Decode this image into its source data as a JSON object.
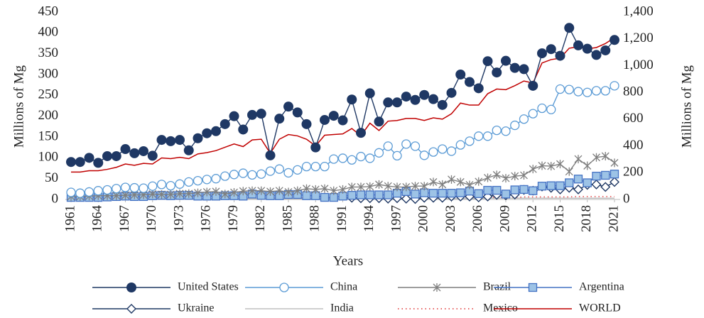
{
  "chart_data": {
    "type": "line",
    "x_label": "Years",
    "y_label": "Millions of Mg",
    "y2_label": "Millions of Mg",
    "x": [
      1961,
      1962,
      1963,
      1964,
      1965,
      1966,
      1967,
      1968,
      1969,
      1970,
      1971,
      1972,
      1973,
      1974,
      1975,
      1976,
      1977,
      1978,
      1979,
      1980,
      1981,
      1982,
      1983,
      1984,
      1985,
      1986,
      1987,
      1988,
      1989,
      1990,
      1991,
      1992,
      1993,
      1994,
      1995,
      1996,
      1997,
      1998,
      1999,
      2000,
      2001,
      2002,
      2003,
      2004,
      2005,
      2006,
      2007,
      2008,
      2009,
      2010,
      2011,
      2012,
      2013,
      2014,
      2015,
      2016,
      2017,
      2018,
      2019,
      2020,
      2021
    ],
    "xlim": [
      1961,
      2021
    ],
    "xticks": [
      1961,
      1964,
      1967,
      1970,
      1973,
      1976,
      1979,
      1982,
      1985,
      1988,
      1991,
      1994,
      1997,
      2000,
      2003,
      2006,
      2009,
      2012,
      2015,
      2018,
      2021
    ],
    "ylim": [
      0,
      450
    ],
    "yticks": [
      0,
      50,
      100,
      150,
      200,
      250,
      300,
      350,
      400,
      450
    ],
    "y2lim": [
      0,
      1400
    ],
    "y2ticks": [
      0,
      200,
      400,
      600,
      800,
      {
        "value": 1000,
        "label": "1,000"
      },
      {
        "value": 1200,
        "label": "1,200"
      },
      {
        "value": 1400,
        "label": "1,400"
      }
    ],
    "grid": false,
    "legend": "bottom",
    "series": [
      {
        "name": "United States",
        "color": "#1f3864",
        "marker": "circle-filled",
        "values": [
          90,
          90,
          100,
          88,
          104,
          104,
          121,
          111,
          116,
          105,
          143,
          140,
          143,
          118,
          147,
          159,
          164,
          181,
          200,
          168,
          203,
          206,
          106,
          194,
          223,
          209,
          181,
          125,
          191,
          201,
          190,
          240,
          160,
          255,
          187,
          233,
          233,
          247,
          239,
          251,
          241,
          227,
          256,
          300,
          282,
          267,
          332,
          305,
          333,
          316,
          313,
          273,
          351,
          361,
          345,
          412,
          370,
          362,
          347,
          358,
          383
        ]
      },
      {
        "name": "China",
        "color": "#5b9bd5",
        "marker": "circle-open",
        "values": [
          17,
          15,
          18,
          21,
          23,
          26,
          29,
          28,
          27,
          32,
          36,
          33,
          37,
          42,
          45,
          48,
          50,
          56,
          60,
          63,
          59,
          61,
          68,
          73,
          64,
          71,
          79,
          79,
          79,
          97,
          99,
          95,
          103,
          99,
          112,
          128,
          105,
          133,
          128,
          106,
          114,
          121,
          116,
          131,
          140,
          152,
          152,
          166,
          164,
          178,
          193,
          206,
          219,
          216,
          265,
          264,
          259,
          257,
          261,
          261,
          273
        ]
      },
      {
        "name": "Brazil",
        "color": "#7f7f7f",
        "marker": "asterisk",
        "values": [
          7,
          7,
          8,
          9,
          9,
          9,
          10,
          11,
          11,
          13,
          12,
          12,
          14,
          14,
          16,
          18,
          19,
          13,
          17,
          20,
          21,
          21,
          19,
          21,
          18,
          21,
          26,
          24,
          26,
          21,
          24,
          30,
          30,
          31,
          36,
          32,
          30,
          30,
          32,
          32,
          42,
          36,
          48,
          42,
          35,
          43,
          52,
          59,
          51,
          56,
          58,
          73,
          81,
          80,
          85,
          67,
          97,
          81,
          101,
          104,
          88
        ]
      },
      {
        "name": "Argentina",
        "color": "#4472c4",
        "fill": "#9dc3e6",
        "marker": "square",
        "values": [
          5,
          5,
          5,
          5,
          6,
          7,
          8,
          7,
          7,
          9,
          10,
          9,
          10,
          10,
          8,
          8,
          8,
          9,
          9,
          8,
          13,
          10,
          9,
          9,
          12,
          12,
          9,
          9,
          5,
          5,
          8,
          10,
          11,
          11,
          11,
          11,
          15,
          19,
          13,
          16,
          15,
          15,
          15,
          16,
          20,
          14,
          22,
          22,
          13,
          23,
          24,
          21,
          32,
          33,
          33,
          40,
          49,
          40,
          56,
          58,
          61
        ]
      },
      {
        "name": "Ukraine",
        "color": "#1f3864",
        "marker": "diamond-open",
        "values": [
          null,
          null,
          null,
          null,
          null,
          null,
          null,
          null,
          null,
          null,
          null,
          null,
          null,
          null,
          null,
          null,
          null,
          null,
          null,
          null,
          null,
          null,
          null,
          null,
          null,
          null,
          null,
          null,
          null,
          null,
          null,
          4,
          3,
          3,
          3,
          2,
          3,
          2,
          1,
          4,
          4,
          4,
          7,
          7,
          7,
          5,
          7,
          11,
          10,
          12,
          23,
          21,
          31,
          28,
          24,
          28,
          24,
          35,
          36,
          30,
          42
        ]
      },
      {
        "name": "India",
        "color": "#bfbfbf",
        "marker": "none",
        "values": [
          1,
          1,
          1,
          1,
          1,
          1,
          1,
          1,
          1,
          1,
          2,
          2,
          2,
          2,
          2,
          2,
          2,
          2,
          2,
          2,
          2,
          2,
          2,
          2,
          2,
          2,
          2,
          2,
          2,
          2,
          2,
          2,
          2,
          2,
          2,
          2,
          2,
          2,
          2,
          2,
          2,
          2,
          2,
          2,
          2,
          2,
          3,
          3,
          3,
          3,
          3,
          3,
          3,
          3,
          3,
          3,
          3,
          3,
          3,
          3,
          3
        ]
      },
      {
        "name": "Mexico",
        "color": "#e03030",
        "marker": "none",
        "dash": "dotted",
        "values": [
          1,
          1,
          1,
          1,
          1,
          1,
          1,
          1,
          1,
          1,
          2,
          2,
          2,
          2,
          2,
          2,
          2,
          2,
          2,
          2,
          3,
          3,
          3,
          3,
          3,
          3,
          3,
          3,
          3,
          3,
          4,
          4,
          4,
          4,
          4,
          4,
          4,
          4,
          4,
          4,
          5,
          5,
          5,
          5,
          5,
          5,
          5,
          5,
          5,
          5,
          6,
          6,
          6,
          6,
          6,
          6,
          7,
          7,
          7,
          7,
          7
        ]
      },
      {
        "name": "WORLD",
        "color": "#c00000",
        "marker": "none",
        "axis": "y2",
        "values": [
          205,
          205,
          215,
          215,
          225,
          240,
          265,
          255,
          270,
          265,
          310,
          305,
          315,
          305,
          340,
          350,
          365,
          390,
          415,
          395,
          445,
          450,
          345,
          450,
          485,
          475,
          450,
          400,
          480,
          485,
          490,
          530,
          475,
          570,
          515,
          585,
          590,
          605,
          605,
          590,
          610,
          600,
          640,
          720,
          705,
          705,
          790,
          825,
          820,
          850,
          885,
          870,
          1020,
          1045,
          1055,
          1130,
          1140,
          1125,
          1135,
          1165,
          1210
        ]
      }
    ]
  }
}
